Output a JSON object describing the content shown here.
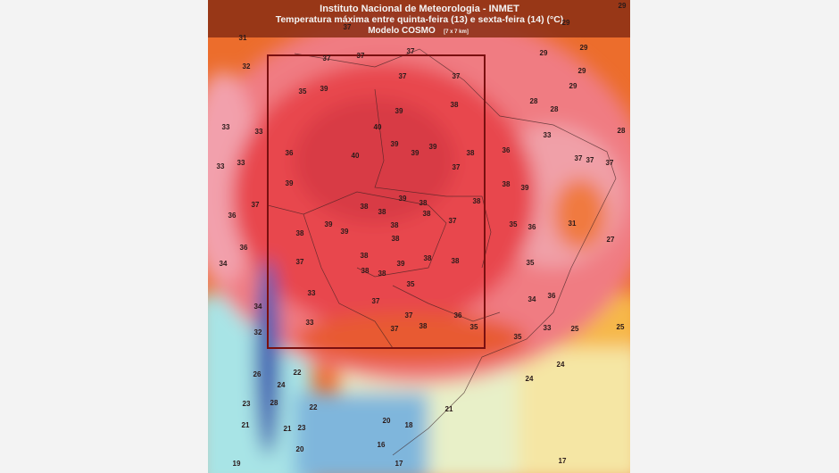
{
  "header": {
    "title": "Instituto Nacional de Meteorologia - INMET",
    "subtitle": "Temperatura máxima entre quinta-feira (13) e sexta-feira (14) (°C)",
    "model": "Modelo COSMO",
    "resolution": "[7 x 7 km]"
  },
  "map": {
    "labels": [
      29,
      29,
      29,
      29,
      29,
      29,
      31,
      37,
      32,
      37,
      37,
      37,
      37,
      37,
      35,
      39,
      38,
      39,
      28,
      28,
      28,
      33,
      33,
      40,
      39,
      39,
      39,
      38,
      36,
      40,
      36,
      33,
      33,
      33,
      37,
      37,
      37,
      37,
      39,
      38,
      39,
      39,
      37,
      38,
      38,
      38,
      38,
      38,
      39,
      38,
      39,
      37,
      36,
      35,
      36,
      31,
      38,
      38,
      27,
      36,
      38,
      38,
      38,
      34,
      37,
      35,
      38,
      38,
      39,
      37,
      35,
      33,
      36,
      34,
      37,
      38,
      36,
      34,
      33,
      32,
      37,
      35,
      35,
      33,
      25,
      25,
      24,
      24,
      22,
      26,
      24,
      28,
      23,
      22,
      21,
      20,
      18,
      21,
      21,
      23,
      16,
      20,
      19,
      17,
      17
    ]
  }
}
